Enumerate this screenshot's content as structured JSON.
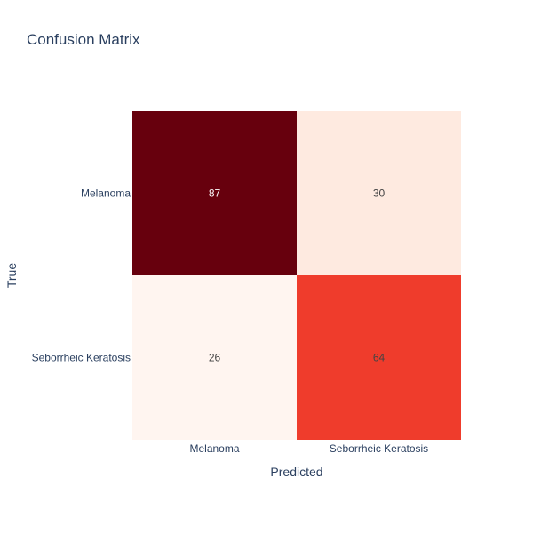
{
  "chart_data": {
    "type": "heatmap",
    "title": "Confusion Matrix",
    "xlabel": "Predicted",
    "ylabel": "True",
    "x_categories": [
      "Melanoma",
      "Seborrheic Keratosis"
    ],
    "y_categories": [
      "Melanoma",
      "Seborrheic Keratosis"
    ],
    "values": [
      [
        87,
        30
      ],
      [
        26,
        64
      ]
    ],
    "colorscale": "Reds",
    "colorscale_range": [
      26,
      87
    ],
    "show_colorbar": false,
    "grid": false
  },
  "colors": {
    "background": "#ffffff",
    "text": "#2a3f5f",
    "cell_text_dark": "#444444",
    "cell_text_light": "#ffffff",
    "scale": [
      "#fff5f0",
      "#fee0d2",
      "#fcbba1",
      "#fc9272",
      "#fb6a4a",
      "#ef3b2c",
      "#cb181d",
      "#a50f15",
      "#67000d"
    ]
  }
}
